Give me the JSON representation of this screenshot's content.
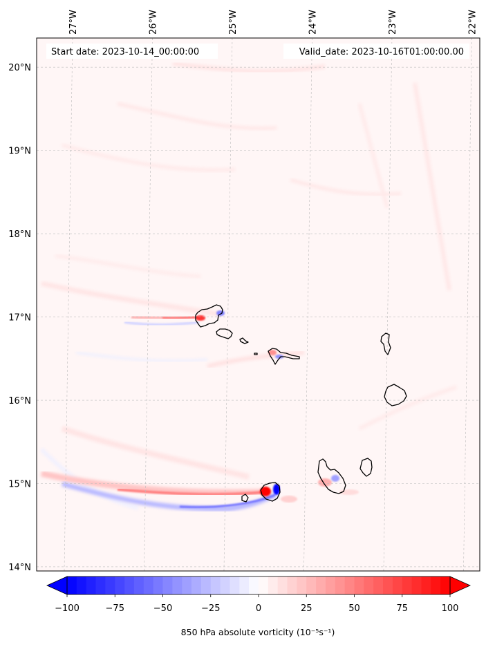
{
  "chart_data": {
    "type": "heatmap",
    "title": "",
    "variable_label": "850 hPa absolute vorticity (10⁻⁵s⁻¹)",
    "start_date_text": "Start date: 2023-10-14_00:00:00",
    "valid_date_text": "Valid_date: 2023-10-16T01:00:00.00",
    "lon_ticks": [
      -27,
      -26,
      -25,
      -24,
      -23,
      -22
    ],
    "lon_tick_labels": [
      "27°W",
      "26°W",
      "25°W",
      "24°W",
      "23°W",
      "22°W"
    ],
    "lat_ticks": [
      14,
      15,
      16,
      17,
      18,
      19,
      20
    ],
    "lat_tick_labels": [
      "14°N",
      "15°N",
      "16°N",
      "17°N",
      "18°N",
      "19°N",
      "20°N"
    ],
    "lon_range": [
      -27.45,
      -21.9
    ],
    "lat_range": [
      13.95,
      20.35
    ],
    "colorbar": {
      "min": -100,
      "max": 100,
      "levels": 40,
      "ticks": [
        -100,
        -75,
        -50,
        -25,
        0,
        25,
        50,
        75,
        100
      ],
      "tick_labels": [
        "−100",
        "−75",
        "−50",
        "−25",
        "0",
        "25",
        "50",
        "75",
        "100"
      ],
      "colormap": "bwr",
      "extend": "both"
    },
    "features": [
      {
        "name": "Santo Antao wake",
        "lon_start": -26.0,
        "lon_end": -24.9,
        "lat": 16.98,
        "max_vorticity": 75,
        "min_vorticity": -40
      },
      {
        "name": "Fogo wake",
        "lon_start": -27.45,
        "lon_end": -24.0,
        "lat": 14.9,
        "max_vorticity": 100,
        "min_vorticity": -100
      },
      {
        "name": "Santiago",
        "lon_start": -23.8,
        "lon_end": -23.3,
        "lat": 15.05,
        "max_vorticity": 40,
        "min_vorticity": -40
      }
    ],
    "grid": true
  }
}
